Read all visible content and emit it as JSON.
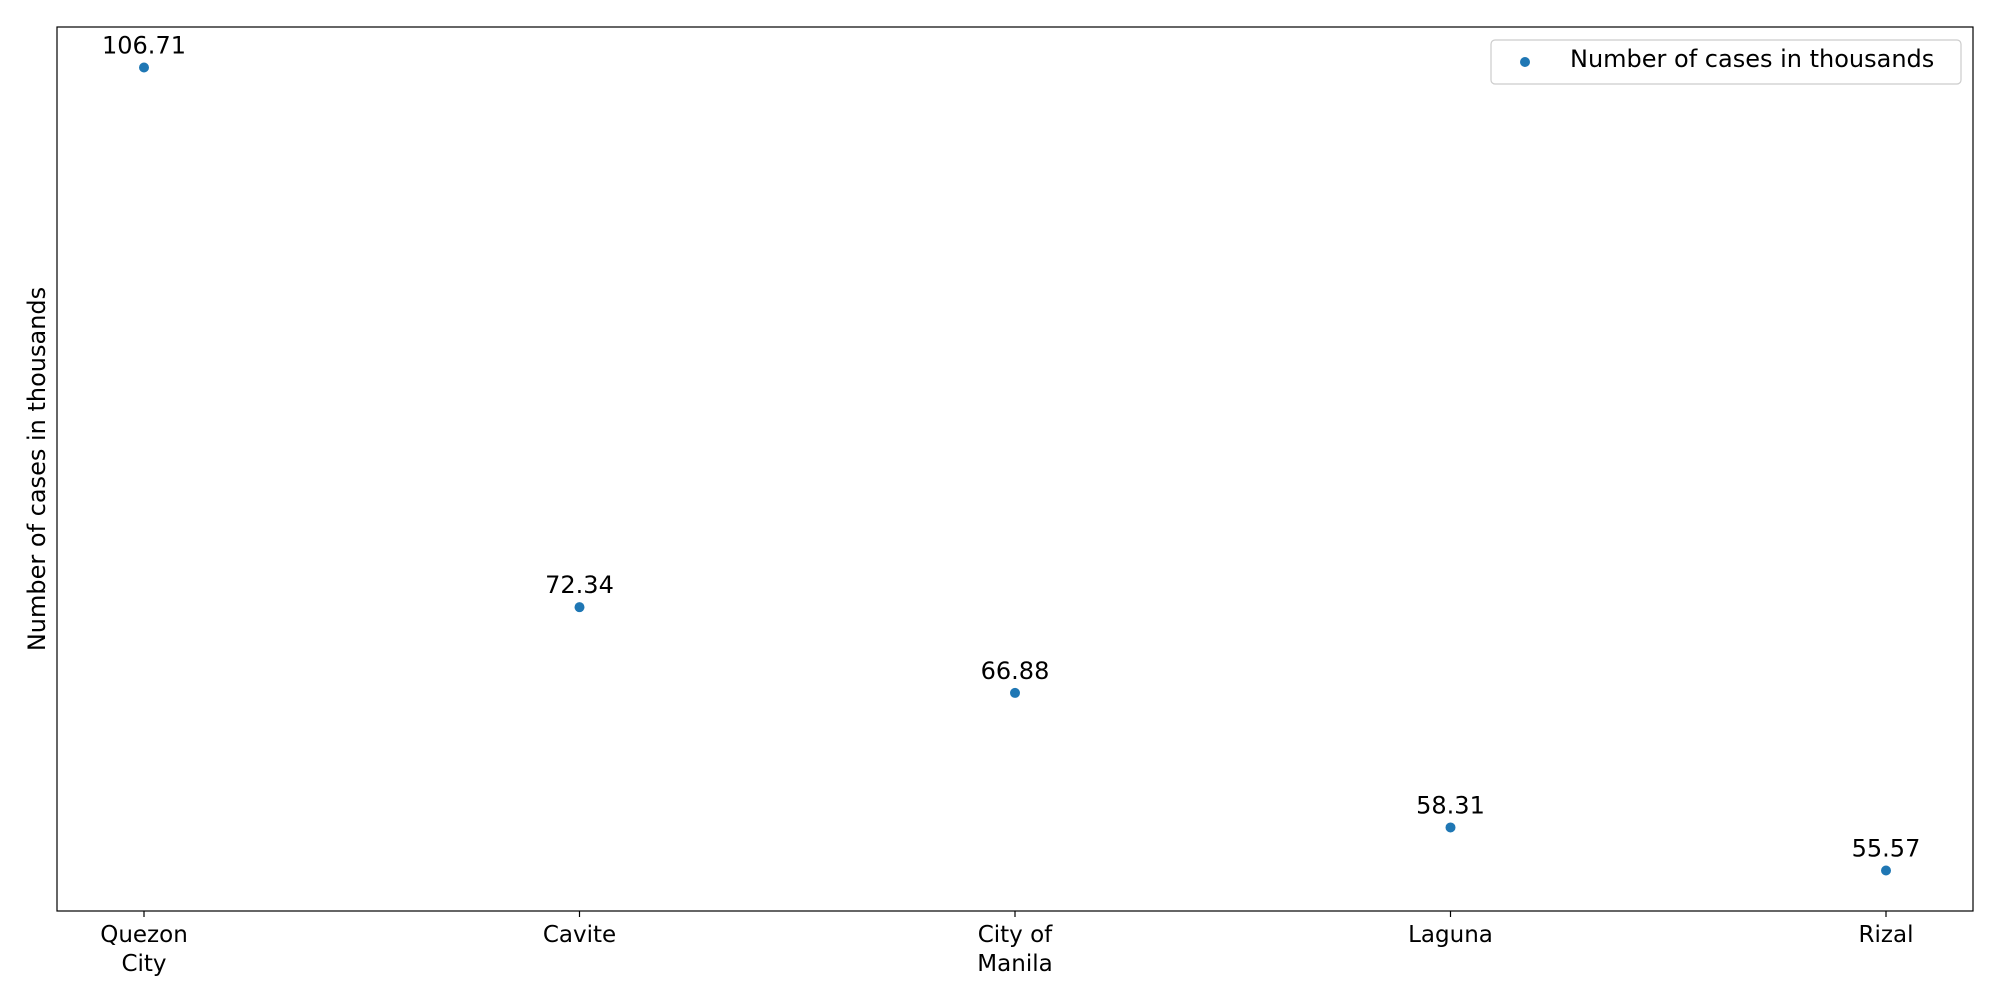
{
  "chart_data": {
    "type": "scatter",
    "categories": [
      "Quezon City",
      "Cavite",
      "City of Manila",
      "Laguna",
      "Rizal"
    ],
    "category_lines": [
      [
        "Quezon",
        "City"
      ],
      [
        "Cavite"
      ],
      [
        "City of",
        "Manila"
      ],
      [
        "Laguna"
      ],
      [
        "Rizal"
      ]
    ],
    "series": [
      {
        "name": "Number of cases in thousands",
        "values": [
          106.71,
          72.34,
          66.88,
          58.31,
          55.57
        ],
        "labels": [
          "106.71",
          "72.34",
          "66.88",
          "58.31",
          "55.57"
        ],
        "color": "#1f77b4"
      }
    ],
    "title": "",
    "xlabel": "",
    "ylabel": "Number of cases in thousands",
    "ylim": [
      52.99,
      109.29
    ],
    "y_ticks_visible": false,
    "grid": false,
    "legend": "top-right"
  }
}
